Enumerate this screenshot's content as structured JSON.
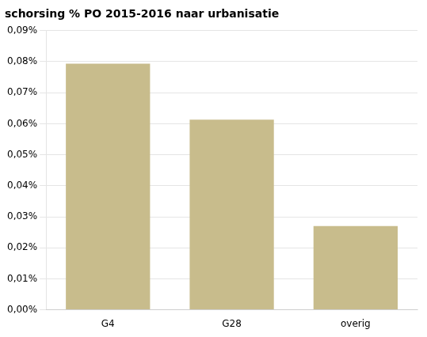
{
  "chart_data": {
    "type": "bar",
    "title": "schorsing % PO 2015-2016 naar urbanisatie",
    "categories": [
      "G4",
      "G28",
      "overig"
    ],
    "values": [
      0.0007938,
      0.0006133,
      0.0002699
    ],
    "color": "#c8bc8c",
    "ylim": [
      0,
      0.0009
    ],
    "yticks": [
      {
        "value": 0.0,
        "label": "0,00%"
      },
      {
        "value": 0.0001,
        "label": "0,01%"
      },
      {
        "value": 0.0002,
        "label": "0,02%"
      },
      {
        "value": 0.0003,
        "label": "0,03%"
      },
      {
        "value": 0.0004,
        "label": "0,04%"
      },
      {
        "value": 0.0005,
        "label": "0,05%"
      },
      {
        "value": 0.0006,
        "label": "0,06%"
      },
      {
        "value": 0.0007,
        "label": "0,07%"
      },
      {
        "value": 0.0008,
        "label": "0,08%"
      },
      {
        "value": 0.0009,
        "label": "0,09%"
      }
    ],
    "grid": true
  }
}
